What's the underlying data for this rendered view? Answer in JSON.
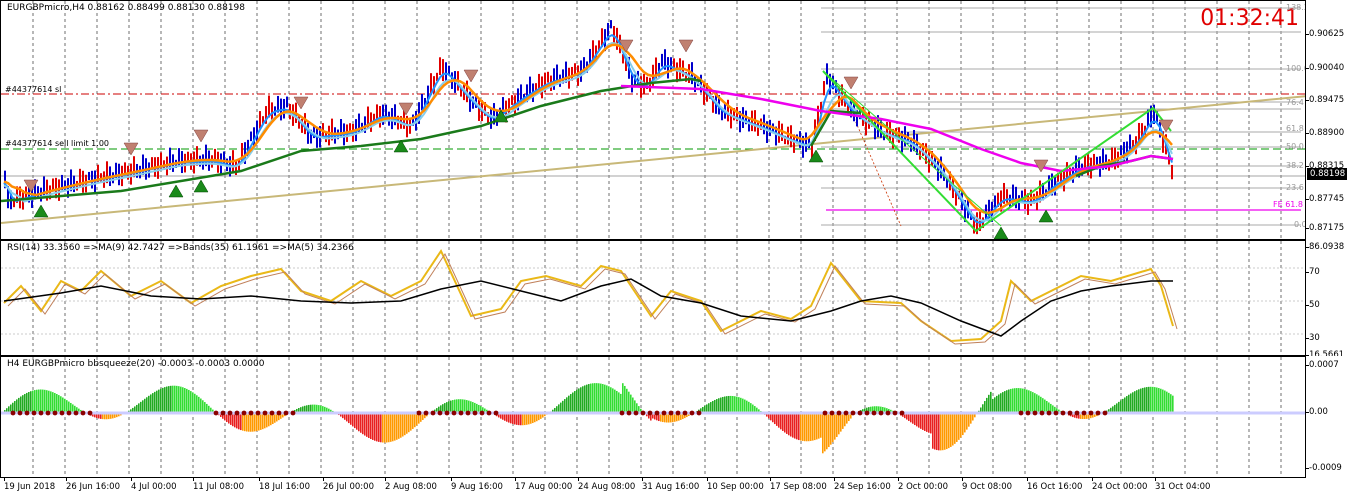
{
  "main": {
    "title": "EURGBPmicro,H4  0.88162 0.88499 0.88130 0.88198",
    "clock": "01:32:41",
    "current_price": "0.88198",
    "sl_label": "#44377614 sl",
    "sell_limit_label": "#44377614 sell limit 1.00",
    "price_ticks": [
      "0.90625",
      "0.90040",
      "0.89475",
      "0.88900",
      "0.88315",
      "0.87745",
      "0.87175"
    ],
    "fib_levels": [
      "138.2",
      "100.0",
      "76.4",
      "61.8",
      "50.0",
      "38.2",
      "23.6",
      "0.0"
    ],
    "fe_label": "FE 61.8",
    "colors": {
      "up": "#0000cc",
      "down": "#e00000",
      "ema_fast": "#1e90ff",
      "ema_mid": "#87ceeb",
      "ema_slow": "#ff8c00",
      "ma_long": "#1a7a1a",
      "magenta": "#ee00ee",
      "trend": "#c8b878",
      "fib": "#aaaaaa",
      "sl_line": "#cc0000",
      "limit_line": "#009900"
    }
  },
  "rsi": {
    "title": "RSI(14) 33.3560  =>MA(9) 42.7427  =>Bands(35) 61.1961  =>MA(5) 34.2366",
    "ticks": [
      "86.0938",
      "70",
      "50",
      "30",
      "16.5661"
    ]
  },
  "squeeze": {
    "title": "H4 EURGBPmicro bbsqueeze(20) -0.0003 -0.0003 0.0000",
    "ticks": [
      "0.0007",
      "0.00",
      "-0.0009"
    ]
  },
  "time_labels": [
    "19 Jun 2018",
    "26 Jun 16:00",
    "4 Jul 00:00",
    "11 Jul 08:00",
    "18 Jul 16:00",
    "26 Jul 00:00",
    "2 Aug 08:00",
    "9 Aug 16:00",
    "17 Aug 00:00",
    "24 Aug 08:00",
    "31 Aug 16:00",
    "10 Sep 00:00",
    "17 Sep 08:00",
    "24 Sep 16:00",
    "2 Oct 00:00",
    "9 Oct 08:00",
    "16 Oct 16:00",
    "24 Oct 00:00",
    "31 Oct 04:00"
  ]
}
